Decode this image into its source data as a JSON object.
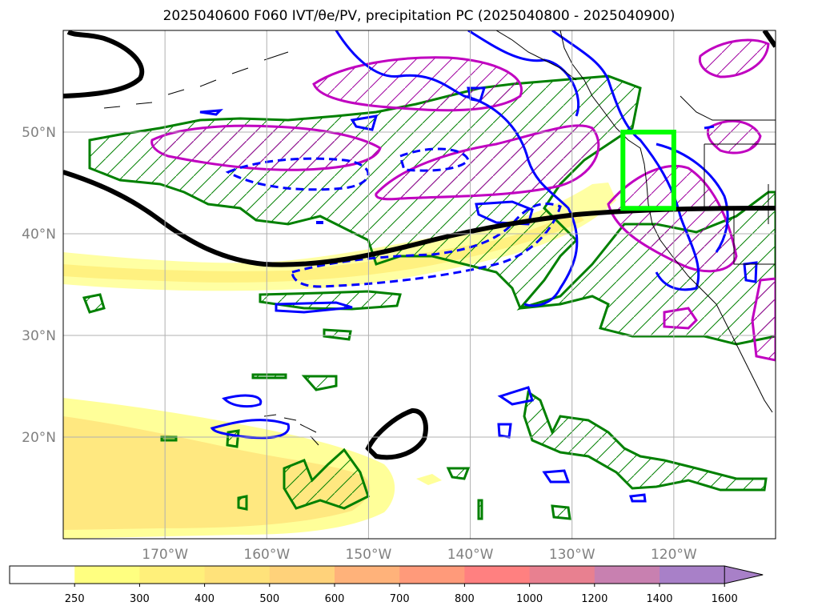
{
  "title": "2025040600 F060 IVT/θe/PV, precipitation PC (2025040800 - 2025040900)",
  "map": {
    "projection": "PlateCarree",
    "extent": {
      "lon_min": -180,
      "lon_max": -110,
      "lat_min": 10,
      "lat_max": 60
    },
    "gridlines": true,
    "lat_ticks": [
      {
        "value": 20,
        "label": "20°N"
      },
      {
        "value": 30,
        "label": "30°N"
      },
      {
        "value": 40,
        "label": "40°N"
      },
      {
        "value": 50,
        "label": "50°N"
      }
    ],
    "lon_ticks": [
      {
        "value": -170,
        "label": "170°W"
      },
      {
        "value": -160,
        "label": "160°W"
      },
      {
        "value": -150,
        "label": "150°W"
      },
      {
        "value": -140,
        "label": "140°W"
      },
      {
        "value": -130,
        "label": "130°W"
      },
      {
        "value": -120,
        "label": "120°W"
      }
    ],
    "highlight_box": {
      "lon_min": -125,
      "lon_max": -120,
      "lat_min": 42.5,
      "lat_max": 50,
      "color": "#00ff00"
    },
    "layers": {
      "ivt_fill": "yellow",
      "theta_e_contour": "#000000",
      "pv_contour": "#0000ff",
      "precip_pc_hatch": "#008000",
      "magenta_contour": "#c000c0"
    }
  },
  "colorbar": {
    "levels": [
      "250",
      "300",
      "400",
      "500",
      "600",
      "700",
      "800",
      "1000",
      "1200",
      "1400",
      "1600"
    ],
    "colors": [
      "#ffffff",
      "#ffff80",
      "#fff07a",
      "#ffe27a",
      "#ffd27a",
      "#ffb27a",
      "#ff9a7a",
      "#ff8080",
      "#e88090",
      "#c880b0",
      "#a880c8"
    ],
    "extend": "max"
  }
}
